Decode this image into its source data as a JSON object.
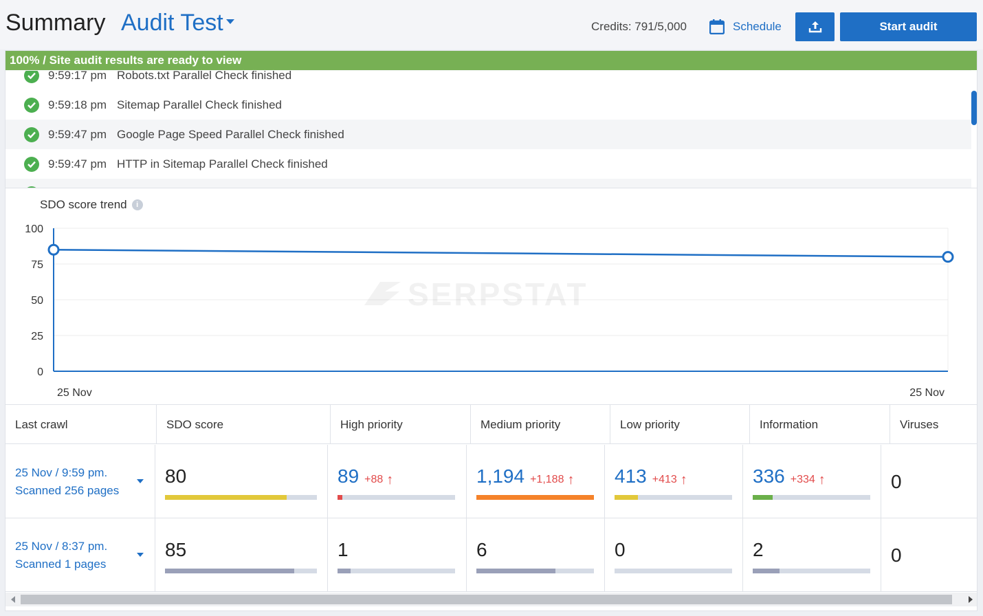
{
  "header": {
    "title": "Summary",
    "project": "Audit Test",
    "credits": "Credits: 791/5,000",
    "schedule_label": "Schedule",
    "start_audit_label": "Start audit"
  },
  "progress": {
    "text": "100% / Site audit results are ready to view",
    "percent": 100,
    "color": "#77b054"
  },
  "log": [
    {
      "time": "9:59:17 pm",
      "message": "Robots.txt Parallel Check finished"
    },
    {
      "time": "9:59:18 pm",
      "message": "Sitemap Parallel Check finished"
    },
    {
      "time": "9:59:47 pm",
      "message": "Google Page Speed Parallel Check finished"
    },
    {
      "time": "9:59:47 pm",
      "message": "HTTP in Sitemap Parallel Check finished"
    }
  ],
  "chart": {
    "title": "SDO score trend",
    "watermark": "SERPSTAT"
  },
  "chart_data": {
    "type": "line",
    "title": "SDO score trend",
    "x": [
      "25 Nov",
      "25 Nov"
    ],
    "series": [
      {
        "values": [
          85,
          80
        ]
      }
    ],
    "ylim": [
      0,
      100
    ],
    "yticks": [
      0,
      25,
      50,
      75,
      100
    ],
    "grid": true,
    "color": "#1f6fc5"
  },
  "table": {
    "headers": [
      "Last crawl",
      "SDO score",
      "High priority",
      "Medium priority",
      "Low priority",
      "Information",
      "Viruses"
    ],
    "rows": [
      {
        "crawl_date": "25 Nov / 9:59 pm.",
        "crawl_pages": "Scanned 256 pages",
        "sdo": "80",
        "sdo_fill": 0.8,
        "sdo_color": "#e2c83a",
        "high": "89",
        "high_delta": "+88",
        "high_fill": 0.04,
        "high_color": "#e24b4b",
        "medium": "1,194",
        "medium_delta": "+1,188",
        "medium_fill": 1.0,
        "medium_color": "#f5822a",
        "low": "413",
        "low_delta": "+413",
        "low_fill": 0.2,
        "low_color": "#e2c83a",
        "info": "336",
        "info_delta": "+334",
        "info_fill": 0.17,
        "info_color": "#6bb04a",
        "viruses": "0"
      },
      {
        "crawl_date": "25 Nov / 8:37 pm.",
        "crawl_pages": "Scanned 1 pages",
        "sdo": "85",
        "sdo_fill": 0.85,
        "sdo_color": "#9aa0b8",
        "high": "1",
        "high_fill": 0.11,
        "high_color": "#9aa0b8",
        "medium": "6",
        "medium_fill": 0.67,
        "medium_color": "#9aa0b8",
        "low": "0",
        "low_fill": 0,
        "low_color": "#9aa0b8",
        "info": "2",
        "info_fill": 0.23,
        "info_color": "#9aa0b8",
        "viruses": "0"
      }
    ]
  }
}
